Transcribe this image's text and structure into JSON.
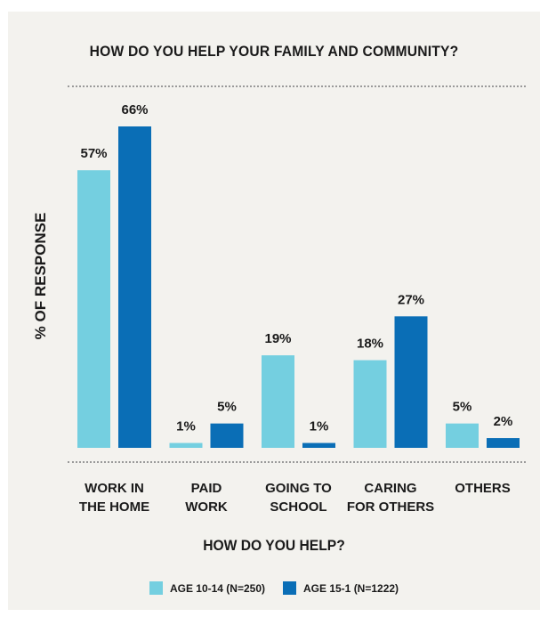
{
  "chart_data": {
    "type": "bar",
    "title": "HOW DO YOU HELP YOUR FAMILY AND COMMUNITY?",
    "xlabel": "HOW DO YOU HELP?",
    "ylabel": "% OF RESPONSE",
    "categories": [
      [
        "WORK IN",
        "THE HOME"
      ],
      [
        "PAID",
        "WORK"
      ],
      [
        "GOING TO",
        "SCHOOL"
      ],
      [
        "CARING",
        "FOR OTHERS"
      ],
      [
        "OTHERS"
      ]
    ],
    "series": [
      {
        "name": "AGE 10-14 (N=250)",
        "color": "#74cfe0",
        "values": [
          57,
          1,
          19,
          18,
          5
        ],
        "labels": [
          "57%",
          "1%",
          "19%",
          "18%",
          "5%"
        ]
      },
      {
        "name": "AGE 15-1 (N=1222)",
        "color": "#0a6eb6",
        "values": [
          66,
          5,
          1,
          27,
          2
        ],
        "labels": [
          "66%",
          "5%",
          "1%",
          "27%",
          "2%"
        ]
      }
    ],
    "ylim": [
      0,
      66
    ],
    "grid": false,
    "legend_position": "bottom"
  }
}
